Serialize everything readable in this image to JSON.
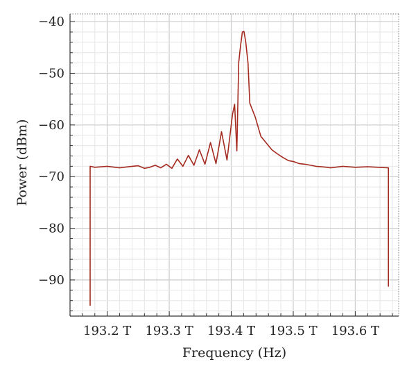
{
  "chart_data": {
    "type": "line",
    "title": "",
    "xlabel": "Frequency (Hz)",
    "ylabel": "Power (dBm)",
    "xlim": [
      193.14,
      193.67
    ],
    "ylim": [
      -97,
      -38.5
    ],
    "x_ticks": [
      193.2,
      193.3,
      193.4,
      193.5,
      193.6
    ],
    "x_tick_labels": [
      "193.2 T",
      "193.3 T",
      "193.4 T",
      "193.5 T",
      "193.6 T"
    ],
    "y_ticks": [
      -90,
      -80,
      -70,
      -60,
      -50,
      -40
    ],
    "y_tick_labels": [
      "−90",
      "−80",
      "−70",
      "−60",
      "−50",
      "−40"
    ],
    "grid": true,
    "legend": "none",
    "colors": {
      "series": "#a52a1f",
      "grid": "#d4d4d4",
      "axis": "#333333"
    },
    "series": [
      {
        "name": "",
        "x": [
          193.1724,
          193.1724,
          193.18,
          193.2,
          193.22,
          193.24,
          193.25,
          193.26,
          193.2686,
          193.2775,
          193.2864,
          193.2953,
          193.3042,
          193.3131,
          193.322,
          193.3309,
          193.3398,
          193.3487,
          193.3576,
          193.3665,
          193.3754,
          193.3843,
          193.3932,
          193.4021,
          193.4055,
          193.409,
          193.412,
          193.4152,
          193.418,
          193.4205,
          193.4235,
          193.427,
          193.4299,
          193.4388,
          193.4477,
          193.4566,
          193.4655,
          193.4744,
          193.4833,
          193.4922,
          193.5011,
          193.51,
          193.5189,
          193.5278,
          193.5367,
          193.5456,
          193.5545,
          193.56,
          193.58,
          193.6,
          193.62,
          193.6535,
          193.6535
        ],
        "y": [
          -95,
          -68,
          -68.2,
          -68,
          -68.3,
          -68,
          -67.9,
          -68.4,
          -68.2,
          -67.8,
          -68.3,
          -67.6,
          -68.4,
          -66.6,
          -68,
          -65.9,
          -67.8,
          -64.8,
          -67.6,
          -63.4,
          -67.5,
          -61.3,
          -66.8,
          -57.9,
          -56,
          -65,
          -47.9,
          -44.5,
          -42,
          -41.9,
          -44,
          -48,
          -55.8,
          -58.5,
          -62.2,
          -63.5,
          -64.8,
          -65.6,
          -66.3,
          -66.9,
          -67.1,
          -67.5,
          -67.6,
          -67.8,
          -68.0,
          -68.1,
          -68.2,
          -68.3,
          -68,
          -68.2,
          -68.1,
          -68.3,
          -91.3
        ]
      }
    ]
  }
}
